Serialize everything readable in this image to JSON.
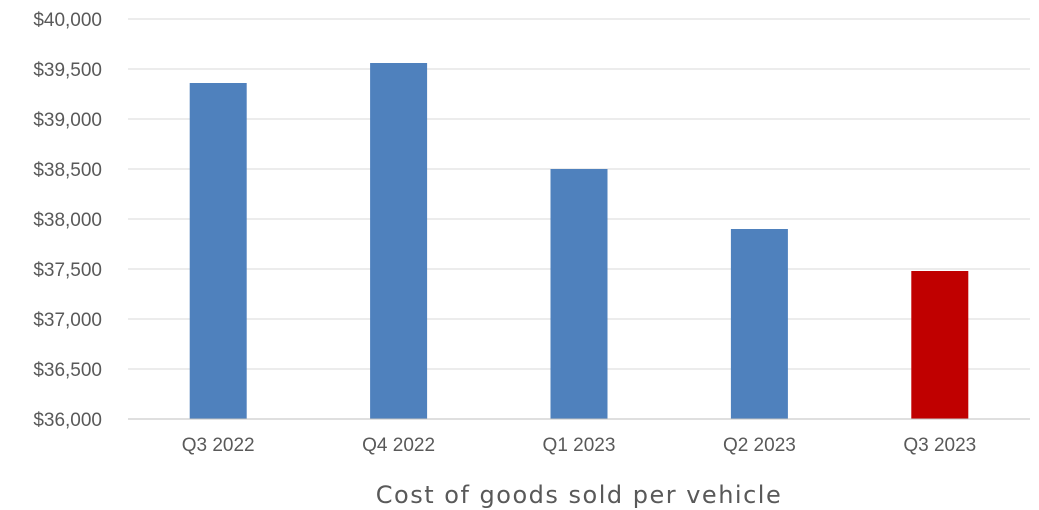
{
  "chart_data": {
    "type": "bar",
    "categories": [
      "Q3 2022",
      "Q4 2022",
      "Q1 2023",
      "Q2 2023",
      "Q3 2023"
    ],
    "values": [
      39360,
      39560,
      38500,
      37900,
      37480
    ],
    "bar_colors": [
      "#4f81bd",
      "#4f81bd",
      "#4f81bd",
      "#4f81bd",
      "#c00000"
    ],
    "xlabel": "Cost of goods sold per vehicle",
    "ylabel": "",
    "ylim": [
      36000,
      40000
    ],
    "yticks": [
      36000,
      36500,
      37000,
      37500,
      38000,
      38500,
      39000,
      39500,
      40000
    ],
    "ytick_labels": [
      "$36,000",
      "$36,500",
      "$37,000",
      "$37,500",
      "$38,000",
      "$38,500",
      "$39,000",
      "$39,500",
      "$40,000"
    ],
    "grid": true,
    "legend": "none"
  },
  "colors": {
    "grid": "#d9d9d9",
    "axis": "#bfbfbf",
    "text": "#595959"
  }
}
